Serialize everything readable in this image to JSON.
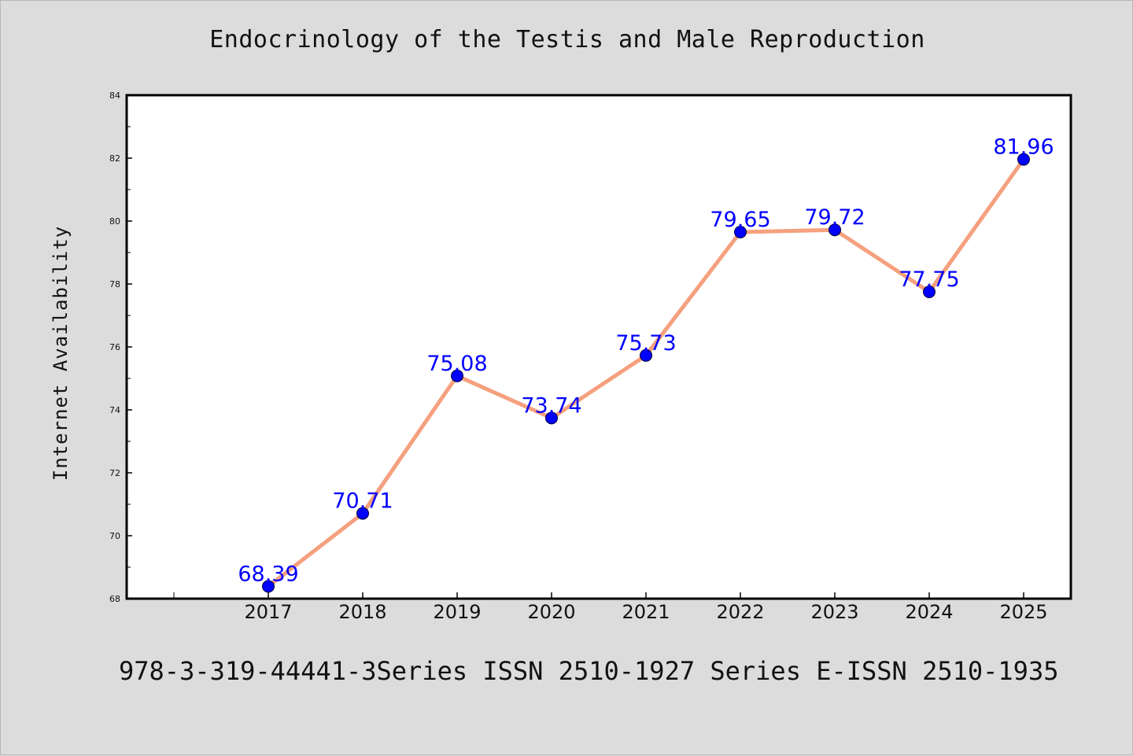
{
  "chart_data": {
    "type": "line",
    "title": "Endocrinology of the Testis and Male Reproduction",
    "xlabel": "",
    "ylabel": "Internet Availability",
    "footer": "978-3-319-44441-3Series ISSN 2510-1927 Series E-ISSN 2510-1935",
    "x": [
      "2017",
      "2018",
      "2019",
      "2020",
      "2021",
      "2022",
      "2023",
      "2024",
      "2025"
    ],
    "values": [
      68.39,
      70.71,
      75.08,
      73.74,
      75.73,
      79.65,
      79.72,
      77.75,
      81.96
    ],
    "data_labels": [
      "68.39",
      "70.71",
      "75.08",
      "73.74",
      "75.73",
      "79.65",
      "79.72",
      "77.75",
      "81.96"
    ],
    "ylim": [
      68,
      84
    ],
    "yticks": [
      "68",
      "70",
      "72",
      "74",
      "76",
      "78",
      "80",
      "82",
      "84"
    ],
    "grid": false,
    "legend": "none",
    "colors": {
      "line": "#f5a07e",
      "marker": "#0000ff",
      "label": "#0000ff",
      "background": "#dcdcdc",
      "plot_area": "#ffffff"
    }
  }
}
